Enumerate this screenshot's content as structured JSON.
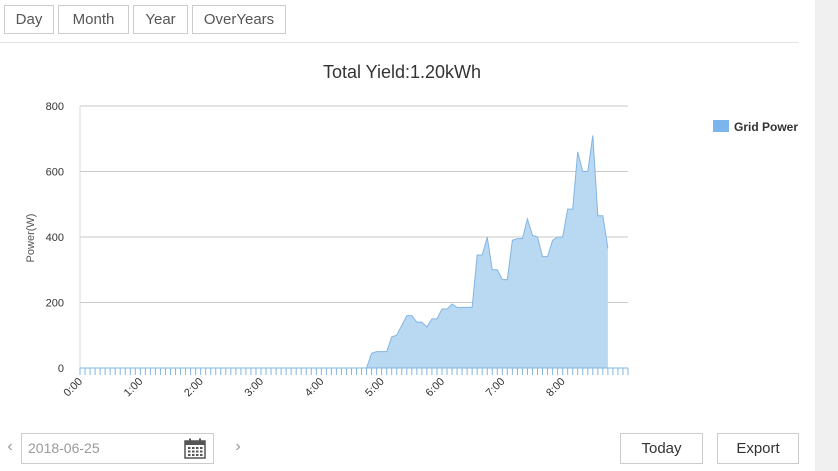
{
  "tabs": [
    {
      "label": "Day",
      "active": true
    },
    {
      "label": "Month",
      "active": false
    },
    {
      "label": "Year",
      "active": false
    },
    {
      "label": "OverYears",
      "active": false
    }
  ],
  "date_picker": {
    "value": "2018-06-25",
    "icon": "calendar-icon",
    "prev_icon": "chevron-left-icon",
    "next_icon": "chevron-right-icon"
  },
  "buttons": {
    "today_label": "Today",
    "export_label": "Export"
  },
  "colors": {
    "accent": "#c9252d",
    "series_fill": "#b9d8f2",
    "series_line": "#82b5e3",
    "legend_swatch": "#7cb5ec",
    "grid": "#c8c8c8"
  },
  "chart_data": {
    "type": "area",
    "title": "Total Yield:1.20kWh",
    "xlabel": "",
    "ylabel": "Power(W)",
    "ylim": [
      0,
      800
    ],
    "y_ticks": [
      0,
      200,
      400,
      600,
      800
    ],
    "x_range": [
      "0:00",
      "9:05"
    ],
    "x_tick_labels": [
      "0:00",
      "1:00",
      "2:00",
      "3:00",
      "4:00",
      "5:00",
      "6:00",
      "7:00",
      "8:00"
    ],
    "minor_tick_minutes": 5,
    "legend_position": "top-right",
    "grid": true,
    "series": [
      {
        "name": "Grid Power",
        "points": [
          [
            "0:00",
            0
          ],
          [
            "4:40",
            0
          ],
          [
            "4:45",
            0
          ],
          [
            "4:50",
            45
          ],
          [
            "4:55",
            50
          ],
          [
            "5:00",
            50
          ],
          [
            "5:05",
            50
          ],
          [
            "5:10",
            95
          ],
          [
            "5:15",
            100
          ],
          [
            "5:20",
            130
          ],
          [
            "5:25",
            160
          ],
          [
            "5:30",
            160
          ],
          [
            "5:35",
            140
          ],
          [
            "5:40",
            140
          ],
          [
            "5:45",
            125
          ],
          [
            "5:50",
            150
          ],
          [
            "5:55",
            150
          ],
          [
            "6:00",
            180
          ],
          [
            "6:05",
            180
          ],
          [
            "6:10",
            195
          ],
          [
            "6:15",
            185
          ],
          [
            "6:20",
            185
          ],
          [
            "6:25",
            185
          ],
          [
            "6:30",
            185
          ],
          [
            "6:35",
            345
          ],
          [
            "6:40",
            345
          ],
          [
            "6:45",
            400
          ],
          [
            "6:50",
            300
          ],
          [
            "6:55",
            300
          ],
          [
            "7:00",
            270
          ],
          [
            "7:05",
            270
          ],
          [
            "7:10",
            390
          ],
          [
            "7:15",
            395
          ],
          [
            "7:20",
            395
          ],
          [
            "7:25",
            455
          ],
          [
            "7:30",
            405
          ],
          [
            "7:35",
            400
          ],
          [
            "7:40",
            340
          ],
          [
            "7:45",
            340
          ],
          [
            "7:50",
            390
          ],
          [
            "7:55",
            400
          ],
          [
            "8:00",
            400
          ],
          [
            "8:05",
            485
          ],
          [
            "8:10",
            485
          ],
          [
            "8:15",
            660
          ],
          [
            "8:20",
            600
          ],
          [
            "8:25",
            600
          ],
          [
            "8:30",
            710
          ],
          [
            "8:35",
            465
          ],
          [
            "8:40",
            465
          ],
          [
            "8:45",
            365
          ]
        ]
      }
    ]
  }
}
